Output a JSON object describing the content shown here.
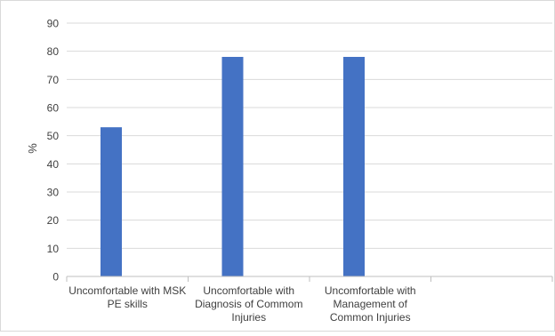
{
  "chart_data": {
    "type": "bar",
    "categories": [
      [
        "Uncomfortable with MSK",
        "PE skills"
      ],
      [
        "Uncomfortable with",
        "Diagnosis of Commom",
        "Injuries"
      ],
      [
        "Uncomfortable with",
        "Management of",
        "Common Injuries"
      ],
      [
        ""
      ]
    ],
    "series": [
      {
        "values": [
          53,
          78,
          78,
          null
        ]
      }
    ],
    "ylabel": "%",
    "xlabel": "",
    "title": "",
    "ylim": [
      0,
      90
    ],
    "yticks": [
      0,
      10,
      20,
      30,
      40,
      50,
      60,
      70,
      80,
      90
    ],
    "grid": true,
    "legend": "none",
    "colors": {
      "bar": "#4472C4",
      "grid": "#d9d9d9",
      "axis": "#bfbfbf",
      "text": "#404040",
      "border": "#d9d9d9"
    }
  }
}
